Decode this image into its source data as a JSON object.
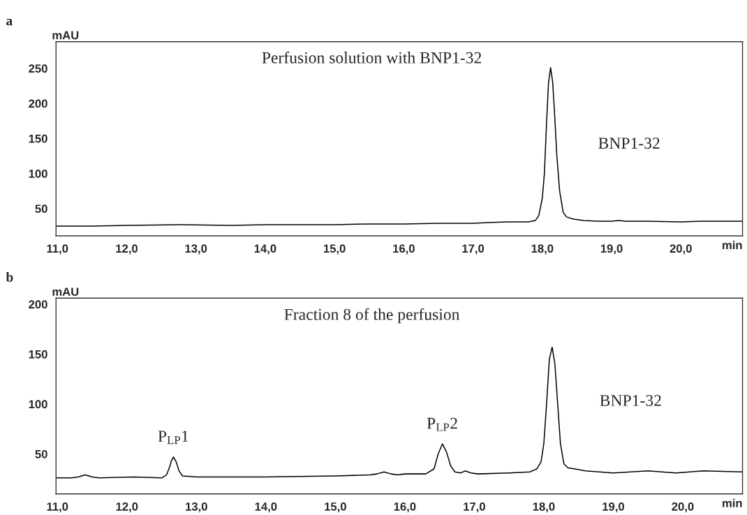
{
  "chart_data": [
    {
      "type": "line",
      "title": "a",
      "xlabel": "min",
      "ylabel": "mAU",
      "xlim": [
        10.98,
        20.89
      ],
      "ylim": [
        11,
        288
      ],
      "xticks": [
        {
          "value": 11,
          "label": "11,0"
        },
        {
          "value": 12,
          "label": "12,0"
        },
        {
          "value": 13,
          "label": "13,0"
        },
        {
          "value": 14,
          "label": "14,0"
        },
        {
          "value": 15,
          "label": "15,0"
        },
        {
          "value": 16,
          "label": "16,0"
        },
        {
          "value": 17,
          "label": "17,0"
        },
        {
          "value": 18,
          "label": "18,0"
        },
        {
          "value": 19,
          "label": "19,0"
        },
        {
          "value": 20,
          "label": "20,0"
        }
      ],
      "yticks": [
        50,
        100,
        150,
        200,
        250
      ],
      "grid": false,
      "legend": false,
      "marker": "none",
      "line_style": "solid",
      "annotations": [
        "Perfusion solution with BNP1-32",
        "BNP1-32"
      ],
      "series": [
        {
          "color": "#000000",
          "x": [
            10.98,
            11.5,
            12.0,
            12.8,
            13.5,
            14.0,
            15.0,
            15.5,
            16.0,
            16.5,
            17.0,
            17.2,
            17.5,
            17.8,
            17.9,
            17.95,
            18.0,
            18.03,
            18.06,
            18.09,
            18.12,
            18.15,
            18.18,
            18.21,
            18.25,
            18.3,
            18.35,
            18.45,
            18.6,
            18.8,
            19.0,
            19.1,
            19.2,
            19.5,
            20.0,
            20.3,
            20.89
          ],
          "values": [
            25,
            25,
            26,
            27,
            26,
            27,
            27,
            28,
            28,
            29,
            29,
            30,
            31,
            31,
            33,
            40,
            65,
            100,
            170,
            230,
            251,
            230,
            180,
            125,
            75,
            45,
            38,
            35,
            33,
            32,
            32,
            33,
            32,
            32,
            31,
            32,
            32
          ]
        }
      ]
    },
    {
      "type": "line",
      "title": "b",
      "xlabel": "min",
      "ylabel": "mAU",
      "xlim": [
        10.98,
        20.86
      ],
      "ylim": [
        10,
        206
      ],
      "xticks": [
        {
          "value": 11,
          "label": "11,0"
        },
        {
          "value": 12,
          "label": "12,0"
        },
        {
          "value": 13,
          "label": "13,0"
        },
        {
          "value": 14,
          "label": "14,0"
        },
        {
          "value": 15,
          "label": "15,0"
        },
        {
          "value": 16,
          "label": "16,0"
        },
        {
          "value": 17,
          "label": "17,0"
        },
        {
          "value": 18,
          "label": "18,0"
        },
        {
          "value": 19,
          "label": "19,0"
        },
        {
          "value": 20,
          "label": "20,0"
        }
      ],
      "yticks": [
        50,
        100,
        150,
        200
      ],
      "grid": false,
      "legend": false,
      "marker": "none",
      "line_style": "solid",
      "annotations": [
        "Fraction 8 of the perfusion",
        {
          "text": "P$_{LP}$1",
          "x": 12.67,
          "y": 47
        },
        {
          "text": "P$_{LP}$2",
          "x": 16.54,
          "y": 60
        },
        "BNP1-32"
      ],
      "series": [
        {
          "color": "#000000",
          "x": [
            10.98,
            11.2,
            11.3,
            11.4,
            11.5,
            11.6,
            12.1,
            12.5,
            12.57,
            12.61,
            12.64,
            12.67,
            12.71,
            12.75,
            12.8,
            13.0,
            13.3,
            14.0,
            15.0,
            15.5,
            15.6,
            15.7,
            15.8,
            15.9,
            16.0,
            16.3,
            16.42,
            16.48,
            16.54,
            16.6,
            16.66,
            16.72,
            16.8,
            16.87,
            16.95,
            17.05,
            17.5,
            17.8,
            17.9,
            17.96,
            18.0,
            18.04,
            18.08,
            18.12,
            18.16,
            18.2,
            18.24,
            18.29,
            18.35,
            18.45,
            18.6,
            18.8,
            19.0,
            19.5,
            19.9,
            20.3,
            20.86
          ],
          "values": [
            26,
            26,
            27,
            29,
            27,
            26,
            27,
            26,
            29,
            36,
            43,
            47,
            42,
            33,
            28,
            27,
            27,
            27,
            28,
            29,
            30,
            32,
            30,
            29,
            30,
            30,
            35,
            50,
            60,
            52,
            38,
            32,
            31,
            33,
            31,
            30,
            31,
            32,
            35,
            42,
            60,
            100,
            145,
            157,
            140,
            100,
            60,
            40,
            36,
            35,
            33,
            32,
            31,
            33,
            31,
            33,
            32
          ]
        }
      ]
    }
  ]
}
